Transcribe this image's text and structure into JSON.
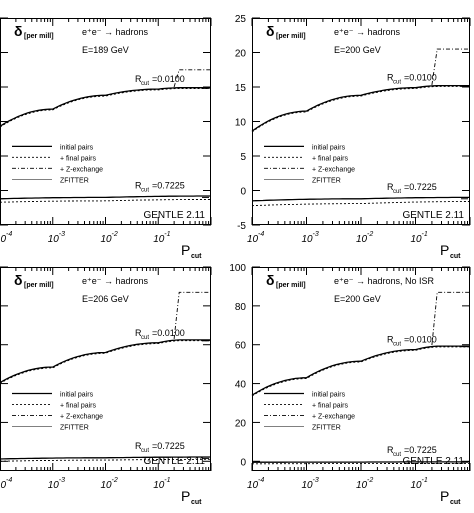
{
  "chart_data": [
    {
      "type": "line",
      "ylabel_main": "δ",
      "ylabel_sub": "[per mill]",
      "xlabel_main": "P",
      "xlabel_sub": "cut",
      "process": "e⁺e⁻ → hadrons",
      "energy": "E=189 GeV",
      "generator": "GENTLE 2.11",
      "r_upper": "Rₙᵤₜ=0.0100",
      "r_upper_label": "R",
      "r_upper_sub": "cut",
      "r_upper_value": "=0.0100",
      "r_lower_label": "R",
      "r_lower_sub": "cut",
      "r_lower_value": "=0.7225",
      "legend": [
        "initial pairs",
        "+ final pairs",
        "+ Z-exchange",
        "ZFITTER"
      ],
      "xscale": "log",
      "xlim": [
        0.0001,
        1
      ],
      "x_ticks": [
        "10",
        "10",
        "10",
        "10"
      ],
      "x_tick_exps": [
        "-4",
        "-3",
        "-2",
        "-1"
      ],
      "ylim": [
        -5,
        25
      ],
      "y_ticks": [],
      "upper_curve": {
        "x": [
          0.0001,
          0.001,
          0.01,
          0.1,
          0.3,
          1
        ],
        "y": [
          9.3,
          11.8,
          13.8,
          14.7,
          14.9,
          14.9
        ]
      },
      "upper_zexch_step": {
        "x": [
          0.2,
          0.25,
          1
        ],
        "y": [
          15.0,
          17.5,
          17.5
        ]
      },
      "lower_curve": {
        "x": [
          0.0001,
          0.01,
          1
        ],
        "y": [
          -1.2,
          -1.0,
          -0.8
        ]
      },
      "lower_dashed": {
        "x": [
          0.0001,
          0.01,
          1
        ],
        "y": [
          -1.7,
          -1.5,
          -1.3
        ]
      },
      "zfitter_upper": 14.8,
      "zfitter_lower": -1.0
    },
    {
      "type": "line",
      "ylabel_main": "δ",
      "ylabel_sub": "[per mill]",
      "xlabel_main": "P",
      "xlabel_sub": "cut",
      "process": "e⁺e⁻ → hadrons",
      "energy": "E=200 GeV",
      "generator": "GENTLE 2.11",
      "r_upper_label": "R",
      "r_upper_sub": "cut",
      "r_upper_value": "=0.0100",
      "r_lower_label": "R",
      "r_lower_sub": "cut",
      "r_lower_value": "=0.7225",
      "legend": [
        "initial pairs",
        "+ final pairs",
        "+ Z-exchange",
        "ZFITTER"
      ],
      "xscale": "log",
      "xlim": [
        0.0001,
        1
      ],
      "x_ticks": [
        "10",
        "10",
        "10",
        "10"
      ],
      "x_tick_exps": [
        "-4",
        "-3",
        "-2",
        "-1"
      ],
      "ylim": [
        -5,
        25
      ],
      "y_ticks": [
        "-5",
        "0",
        "5",
        "10",
        "15",
        "20",
        "25"
      ],
      "upper_curve": {
        "x": [
          0.0001,
          0.001,
          0.01,
          0.1,
          0.3,
          1
        ],
        "y": [
          8.6,
          11.5,
          13.8,
          14.9,
          15.2,
          15.2
        ]
      },
      "upper_zexch_step": {
        "x": [
          0.2,
          0.25,
          1
        ],
        "y": [
          15.3,
          20.5,
          20.5
        ]
      },
      "lower_curve": {
        "x": [
          0.0001,
          0.01,
          1
        ],
        "y": [
          -1.5,
          -1.2,
          -1.0
        ]
      },
      "lower_dashed": {
        "x": [
          0.0001,
          0.01,
          1
        ],
        "y": [
          -2.2,
          -1.9,
          -1.6
        ]
      },
      "zfitter_upper": 15.1,
      "zfitter_lower": -1.2
    },
    {
      "type": "line",
      "ylabel_main": "δ",
      "ylabel_sub": "[per mill]",
      "xlabel_main": "P",
      "xlabel_sub": "cut",
      "process": "e⁺e⁻ → hadrons",
      "energy": "E=206 GeV",
      "generator": "GENTLE 2.11",
      "r_upper_label": "R",
      "r_upper_sub": "cut",
      "r_upper_value": "=0.0100",
      "r_lower_label": "R",
      "r_lower_sub": "cut",
      "r_lower_value": "=0.7225",
      "legend": [
        "initial pairs",
        "+ final pairs",
        "+ Z-exchange",
        "ZFITTER"
      ],
      "xscale": "log",
      "xlim": [
        0.0001,
        1
      ],
      "x_ticks": [
        "10",
        "10",
        "10",
        "10"
      ],
      "x_tick_exps": [
        "-4",
        "-3",
        "-2",
        "-1"
      ],
      "ylim": [
        -5,
        100
      ],
      "y_ticks": [],
      "upper_curve": {
        "x": [
          0.0001,
          0.001,
          0.01,
          0.1,
          0.3,
          1
        ],
        "y": [
          40.5,
          48.5,
          56,
          61,
          62.5,
          62.5
        ]
      },
      "upper_zexch_step": {
        "x": [
          0.2,
          0.25,
          1
        ],
        "y": [
          63,
          87,
          87
        ]
      },
      "lower_curve": {
        "x": [
          0.0001,
          0.01,
          1
        ],
        "y": [
          1.2,
          1.8,
          2.2
        ]
      },
      "lower_dashed": {
        "x": [
          0.0001,
          0.01,
          1
        ],
        "y": [
          0.0,
          0.6,
          1.0
        ]
      },
      "zfitter_upper": 62,
      "zfitter_lower": 1.5
    },
    {
      "type": "line",
      "ylabel_main": "δ",
      "ylabel_sub": "[per mill]",
      "xlabel_main": "P",
      "xlabel_sub": "cut",
      "process": "e⁺e⁻ → hadrons, No ISR",
      "energy": "E=200 GeV",
      "generator": "GENTLE 2.11",
      "r_upper_label": "R",
      "r_upper_sub": "cut",
      "r_upper_value": "=0.0100",
      "r_lower_label": "R",
      "r_lower_sub": "cut",
      "r_lower_value": "=0.7225",
      "legend": [
        "initial pairs",
        "+ final pairs",
        "+ Z-exchange",
        "ZFITTER"
      ],
      "xscale": "log",
      "xlim": [
        0.0001,
        1
      ],
      "x_ticks": [
        "10",
        "10",
        "10",
        "10"
      ],
      "x_tick_exps": [
        "-4",
        "-3",
        "-2",
        "-1"
      ],
      "ylim": [
        -5,
        100
      ],
      "y_ticks": [
        "0",
        "20",
        "40",
        "60",
        "80",
        "100"
      ],
      "upper_curve": {
        "x": [
          0.0001,
          0.001,
          0.01,
          0.1,
          0.3,
          1
        ],
        "y": [
          34,
          43,
          51.5,
          57.5,
          59.3,
          59.3
        ]
      },
      "upper_zexch_step": {
        "x": [
          0.2,
          0.25,
          1
        ],
        "y": [
          59.8,
          87,
          87
        ]
      },
      "lower_curve": {
        "x": [
          0.0001,
          0.01,
          1
        ],
        "y": [
          -0.5,
          -0.4,
          -0.3
        ]
      },
      "lower_dashed": {
        "x": [
          0.0001,
          0.01,
          1
        ],
        "y": [
          -1.3,
          -1.2,
          -1.1
        ]
      },
      "zfitter_upper": 59,
      "zfitter_lower": -0.5
    }
  ],
  "colors": {
    "ink": "#000000",
    "background": "#ffffff"
  }
}
